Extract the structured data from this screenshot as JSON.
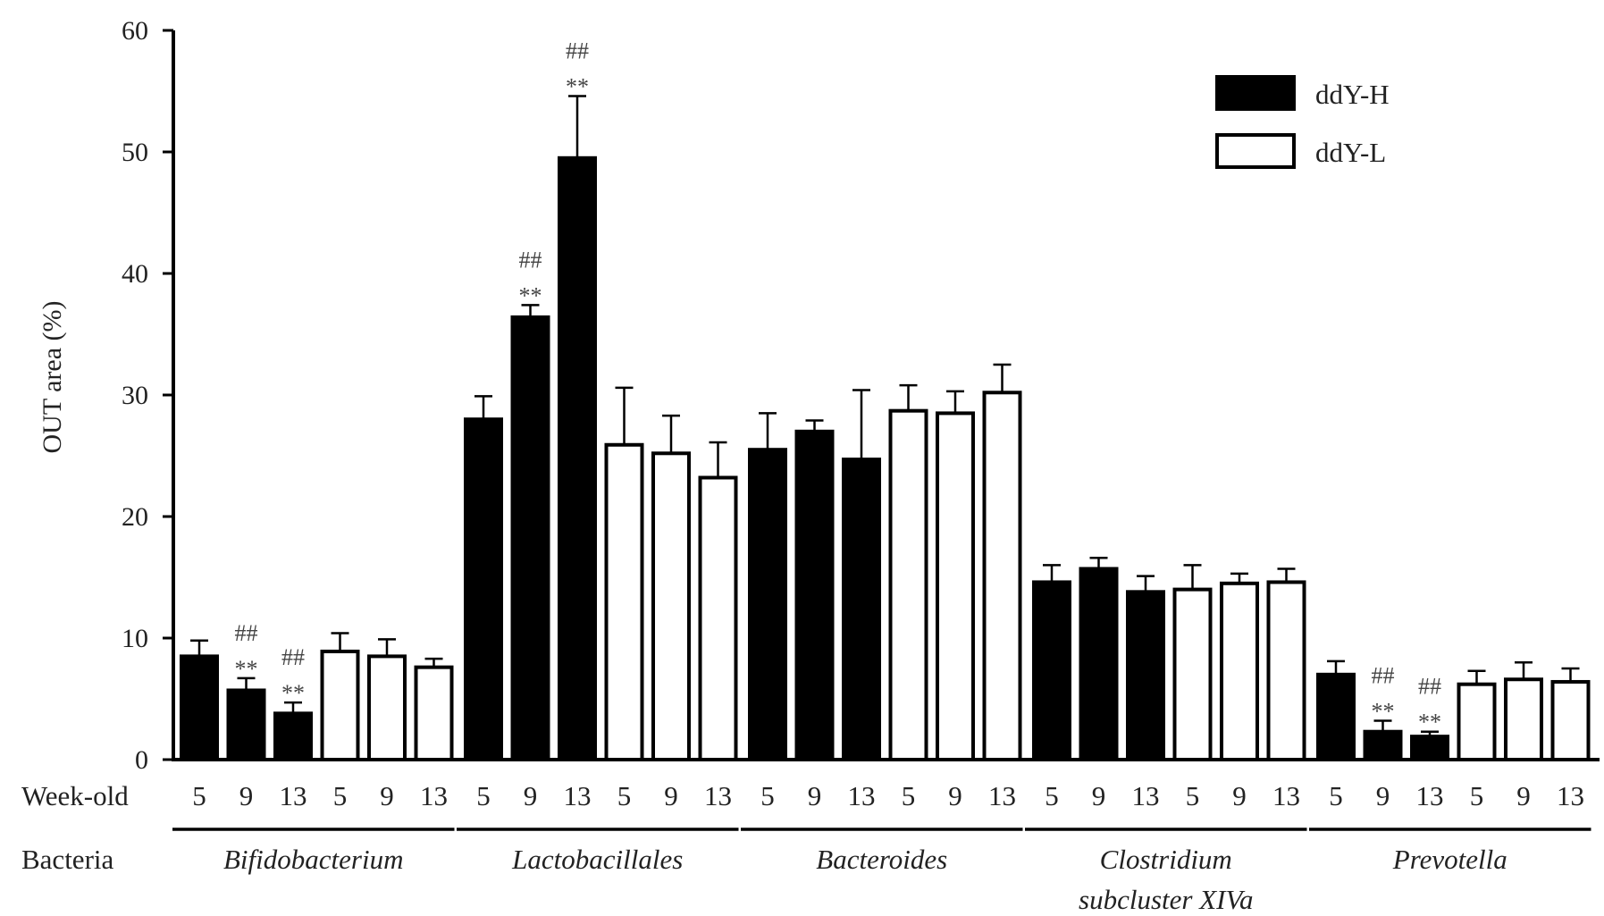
{
  "chart_data": {
    "type": "bar",
    "ylabel": "OUT area (%)",
    "ylim": [
      0,
      60
    ],
    "yticks": [
      0,
      10,
      20,
      30,
      40,
      50,
      60
    ],
    "row_labels": {
      "weeks": "Week-old",
      "bacteria": "Bacteria"
    },
    "series": [
      {
        "name": "ddY-H",
        "color": "#000000",
        "fill": "solid"
      },
      {
        "name": "ddY-L",
        "color": "#000000",
        "fill": "open"
      }
    ],
    "legend_position": "top-right",
    "groups": [
      {
        "name_lines": [
          "Bifidobacterium"
        ],
        "bars": [
          {
            "series": "ddY-H",
            "week": "5",
            "value": 8.5,
            "error": 1.3
          },
          {
            "series": "ddY-H",
            "week": "9",
            "value": 5.7,
            "error": 1.0,
            "sig": [
              "##",
              "**"
            ]
          },
          {
            "series": "ddY-H",
            "week": "13",
            "value": 3.8,
            "error": 0.9,
            "sig": [
              "##",
              "**"
            ]
          },
          {
            "series": "ddY-L",
            "week": "5",
            "value": 8.9,
            "error": 1.5
          },
          {
            "series": "ddY-L",
            "week": "9",
            "value": 8.5,
            "error": 1.4
          },
          {
            "series": "ddY-L",
            "week": "13",
            "value": 7.6,
            "error": 0.7
          }
        ]
      },
      {
        "name_lines": [
          "Lactobacillales"
        ],
        "bars": [
          {
            "series": "ddY-H",
            "week": "5",
            "value": 28.0,
            "error": 1.9
          },
          {
            "series": "ddY-H",
            "week": "9",
            "value": 36.4,
            "error": 1.0,
            "sig": [
              "##",
              "**"
            ]
          },
          {
            "series": "ddY-H",
            "week": "13",
            "value": 49.5,
            "error": 5.1,
            "sig": [
              "##",
              "**"
            ]
          },
          {
            "series": "ddY-L",
            "week": "5",
            "value": 25.9,
            "error": 4.7
          },
          {
            "series": "ddY-L",
            "week": "9",
            "value": 25.2,
            "error": 3.1
          },
          {
            "series": "ddY-L",
            "week": "13",
            "value": 23.2,
            "error": 2.9
          }
        ]
      },
      {
        "name_lines": [
          "Bacteroides"
        ],
        "bars": [
          {
            "series": "ddY-H",
            "week": "5",
            "value": 25.5,
            "error": 3.0
          },
          {
            "series": "ddY-H",
            "week": "9",
            "value": 27.0,
            "error": 0.9
          },
          {
            "series": "ddY-H",
            "week": "13",
            "value": 24.7,
            "error": 5.7
          },
          {
            "series": "ddY-L",
            "week": "5",
            "value": 28.7,
            "error": 2.1
          },
          {
            "series": "ddY-L",
            "week": "9",
            "value": 28.5,
            "error": 1.8
          },
          {
            "series": "ddY-L",
            "week": "13",
            "value": 30.2,
            "error": 2.3
          }
        ]
      },
      {
        "name_lines": [
          "Clostridium",
          "subcluster XIVa"
        ],
        "bars": [
          {
            "series": "ddY-H",
            "week": "5",
            "value": 14.6,
            "error": 1.4
          },
          {
            "series": "ddY-H",
            "week": "9",
            "value": 15.7,
            "error": 0.9
          },
          {
            "series": "ddY-H",
            "week": "13",
            "value": 13.8,
            "error": 1.3
          },
          {
            "series": "ddY-L",
            "week": "5",
            "value": 14.0,
            "error": 2.0
          },
          {
            "series": "ddY-L",
            "week": "9",
            "value": 14.5,
            "error": 0.8
          },
          {
            "series": "ddY-L",
            "week": "13",
            "value": 14.6,
            "error": 1.1
          }
        ]
      },
      {
        "name_lines": [
          "Prevotella"
        ],
        "bars": [
          {
            "series": "ddY-H",
            "week": "5",
            "value": 7.0,
            "error": 1.1
          },
          {
            "series": "ddY-H",
            "week": "9",
            "value": 2.3,
            "error": 0.9,
            "sig": [
              "##",
              "**"
            ]
          },
          {
            "series": "ddY-H",
            "week": "13",
            "value": 1.9,
            "error": 0.4,
            "sig": [
              "##",
              "**"
            ]
          },
          {
            "series": "ddY-L",
            "week": "5",
            "value": 6.2,
            "error": 1.1
          },
          {
            "series": "ddY-L",
            "week": "9",
            "value": 6.6,
            "error": 1.4
          },
          {
            "series": "ddY-L",
            "week": "13",
            "value": 6.4,
            "error": 1.1
          }
        ]
      }
    ]
  }
}
